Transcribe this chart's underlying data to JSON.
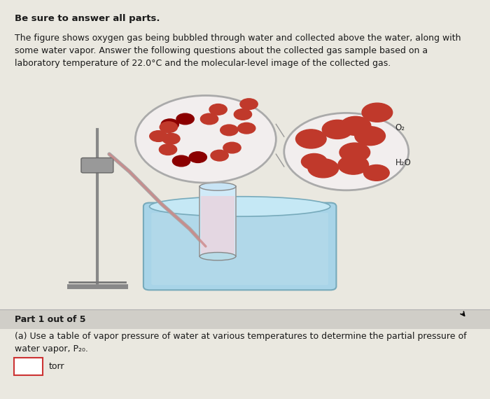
{
  "bg_color": "#eae8e0",
  "text_color": "#1a1a1a",
  "title_bold": "Be sure to answer all parts.",
  "intro_text": "The figure shows oxygen gas being bubbled through water and collected above the water, along with\nsome water vapor. Answer the following questions about the collected gas sample based on a\nlaboratory temperature of 22.0°C and the molecular-level image of the collected gas.",
  "part_label": "Part 1 out of 5",
  "question_text": "(a) Use a table of vapor pressure of water at various temperatures to determine the partial pressure of\nwater vapor, P₂₀.",
  "answer_unit": "torr",
  "o2_label": "O₂",
  "h2o_label": "H₂O",
  "o2_molecule_color": "#c0392b",
  "h2o_molecule_color": "#c0392b",
  "separator_color": "#b0b0b0",
  "answer_box_color": "#cc3333",
  "part_bar_color": "#d0cec8"
}
